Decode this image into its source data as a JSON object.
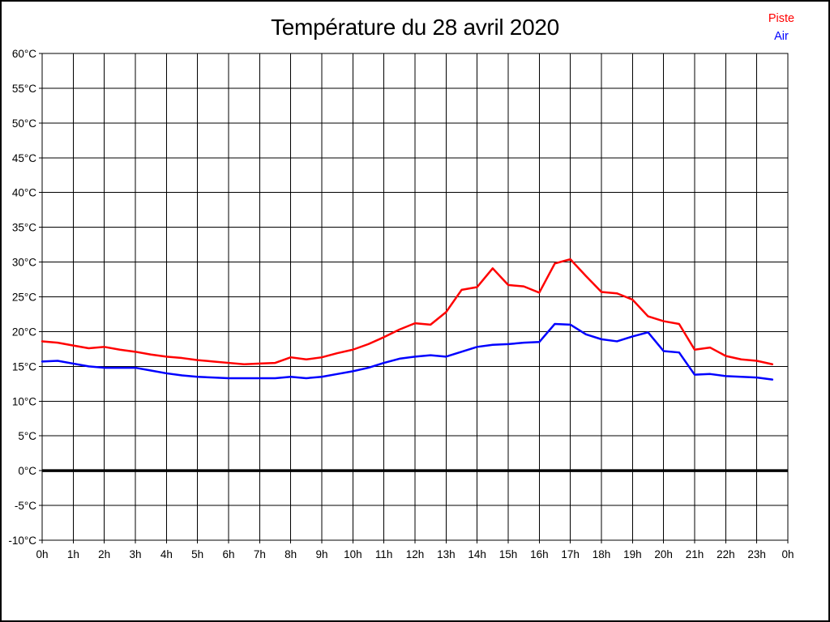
{
  "chart_data": {
    "type": "line",
    "title": "Température du 28 avril 2020",
    "xlabel": "",
    "ylabel": "",
    "x_unit": "hour of day",
    "ylim": [
      -10,
      60
    ],
    "y_tick_step": 5,
    "grid": true,
    "zero_line": true,
    "legend_position": "top-right",
    "y_tick_labels": [
      "60°C",
      "55°C",
      "50°C",
      "45°C",
      "40°C",
      "35°C",
      "30°C",
      "25°C",
      "20°C",
      "15°C",
      "10°C",
      "5°C",
      "0°C",
      "-5°C",
      "-10°C"
    ],
    "x_tick_labels": [
      "0h",
      "1h",
      "2h",
      "3h",
      "4h",
      "5h",
      "6h",
      "7h",
      "8h",
      "9h",
      "10h",
      "11h",
      "12h",
      "13h",
      "14h",
      "15h",
      "16h",
      "17h",
      "18h",
      "19h",
      "20h",
      "21h",
      "22h",
      "23h",
      "0h"
    ],
    "x": [
      0,
      0.5,
      1,
      1.5,
      2,
      2.5,
      3,
      3.5,
      4,
      4.5,
      5,
      5.5,
      6,
      6.5,
      7,
      7.5,
      8,
      8.5,
      9,
      9.5,
      10,
      10.5,
      11,
      11.5,
      12,
      12.5,
      13,
      13.5,
      14,
      14.5,
      15,
      15.5,
      16,
      16.5,
      17,
      17.5,
      18,
      18.5,
      19,
      19.5,
      20,
      20.5,
      21,
      21.5,
      22,
      22.5,
      23,
      23.5
    ],
    "series": [
      {
        "name": "Piste",
        "color": "#ff0000",
        "values": [
          18.6,
          18.4,
          18.0,
          17.6,
          17.8,
          17.4,
          17.1,
          16.7,
          16.4,
          16.2,
          15.9,
          15.7,
          15.5,
          15.3,
          15.4,
          15.5,
          16.3,
          16.0,
          16.3,
          16.9,
          17.4,
          18.2,
          19.2,
          20.3,
          21.2,
          21.0,
          22.8,
          26.0,
          26.4,
          29.1,
          26.7,
          26.5,
          25.6,
          29.8,
          30.4,
          28.0,
          25.7,
          25.5,
          24.6,
          22.2,
          21.5,
          21.1,
          17.4,
          17.7,
          16.5,
          16.0,
          15.8,
          15.3
        ]
      },
      {
        "name": "Air",
        "color": "#0000ff",
        "values": [
          15.7,
          15.8,
          15.4,
          15.0,
          14.8,
          14.8,
          14.8,
          14.4,
          14.0,
          13.7,
          13.5,
          13.4,
          13.3,
          13.3,
          13.3,
          13.3,
          13.5,
          13.3,
          13.5,
          13.9,
          14.3,
          14.8,
          15.5,
          16.1,
          16.4,
          16.6,
          16.4,
          17.1,
          17.8,
          18.1,
          18.2,
          18.4,
          18.5,
          21.1,
          21.0,
          19.6,
          18.9,
          18.6,
          19.3,
          19.9,
          17.2,
          17.0,
          13.8,
          13.9,
          13.6,
          13.5,
          13.4,
          13.1
        ]
      }
    ]
  }
}
